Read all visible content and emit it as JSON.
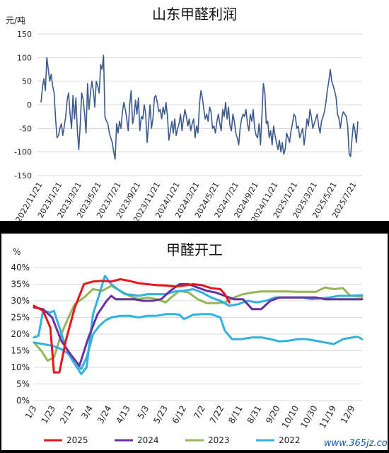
{
  "watermark": "www.365jz.com",
  "colors": {
    "profit_line": "#3a5a8c",
    "s2025": "#e8161b",
    "s2024": "#6a2fa1",
    "s2023": "#93b656",
    "s2022": "#2fb2e0",
    "grid": "#d9d9d9"
  },
  "chart_data": [
    {
      "type": "line",
      "title": "山东甲醛利润",
      "unit_label": "元/吨",
      "ylim": [
        -150,
        150
      ],
      "yticks": [
        150,
        100,
        50,
        0,
        -50,
        -100,
        -150
      ],
      "xticks": [
        "2022/11/21",
        "2023/1/21",
        "2023/3/21",
        "2023/5/21",
        "2023/7/21",
        "2023/9/21",
        "2023/11/21",
        "2024/1/21",
        "2024/3/21",
        "2024/5/21",
        "2024/7/21",
        "2024/9/21",
        "2024/11/21",
        "2025/1/21",
        "2025/3/21",
        "2025/5/21",
        "2025/7/21"
      ],
      "grid": true,
      "series": [
        {
          "x_start": "2022/11/21",
          "x_end": "2025/7/31",
          "values": [
            5,
            38,
            55,
            30,
            100,
            75,
            50,
            65,
            40,
            25,
            -30,
            -70,
            -65,
            -50,
            -40,
            -65,
            -45,
            -25,
            10,
            25,
            -20,
            -50,
            20,
            -30,
            15,
            -55,
            -95,
            -40,
            25,
            10,
            -20,
            -60,
            45,
            -10,
            25,
            50,
            30,
            -5,
            50,
            40,
            25,
            85,
            75,
            105,
            -25,
            -35,
            -40,
            -60,
            -70,
            -80,
            -100,
            -115,
            -40,
            -60,
            -35,
            -50,
            -15,
            5,
            -10,
            -30,
            -55,
            0,
            30,
            -40,
            -25,
            10,
            -20,
            15,
            -55,
            -25,
            -30,
            0,
            -20,
            -80,
            -40,
            0,
            -50,
            -30,
            15,
            20,
            5,
            -15,
            -10,
            -30,
            -5,
            -20,
            5,
            -25,
            -75,
            -55,
            -35,
            -60,
            -30,
            -65,
            -50,
            -40,
            -20,
            -55,
            -30,
            -10,
            -25,
            -45,
            -30,
            -55,
            -40,
            -30,
            -70,
            -45,
            -60,
            0,
            30,
            15,
            -10,
            -30,
            -20,
            -35,
            -5,
            -15,
            -50,
            -45,
            -60,
            -35,
            -20,
            -40,
            -55,
            -10,
            -25,
            5,
            -30,
            -5,
            -45,
            -55,
            -20,
            -35,
            -60,
            -70,
            -85,
            -50,
            -30,
            -20,
            -25,
            -10,
            -40,
            -55,
            -20,
            -35,
            -10,
            -50,
            -65,
            -70,
            -40,
            -85,
            -20,
            45,
            25,
            -40,
            -35,
            -70,
            -55,
            -85,
            -45,
            -65,
            -80,
            -95,
            -75,
            -100,
            -80,
            -105,
            -95,
            -60,
            -70,
            -80,
            -55,
            -40,
            -20,
            -25,
            -50,
            -45,
            -70,
            -60,
            -50,
            -85,
            -60,
            -30,
            -45,
            -10,
            -25,
            -50,
            -40,
            -30,
            -20,
            -45,
            -60,
            -35,
            -25,
            -15,
            5,
            30,
            50,
            75,
            50,
            40,
            30,
            15,
            -20,
            -30,
            -50,
            -25,
            -15,
            -20,
            -25,
            -45,
            -105,
            -110,
            -70,
            -40,
            -55,
            -80,
            -35
          ]
        }
      ]
    },
    {
      "type": "line",
      "title": "甲醛开工",
      "unit_label": "%",
      "ylim": [
        0,
        40
      ],
      "yticks": [
        "40%",
        "35%",
        "30%",
        "25%",
        "20%",
        "15%",
        "10%",
        "5%",
        "0%"
      ],
      "xticks": [
        "1/3",
        "1/23",
        "2/12",
        "3/4",
        "3/24",
        "4/13",
        "5/3",
        "5/23",
        "6/12",
        "7/2",
        "7/22",
        "8/11",
        "8/31",
        "9/20",
        "10/10",
        "10/30",
        "11/19",
        "12/9"
      ],
      "x_domain": [
        0,
        361
      ],
      "grid": true,
      "series": [
        {
          "name": "2025",
          "color": "#e8161b",
          "points": [
            [
              0,
              28.5
            ],
            [
              10,
              27
            ],
            [
              18,
              22
            ],
            [
              22,
              8.5
            ],
            [
              28,
              8.5
            ],
            [
              35,
              18
            ],
            [
              45,
              28
            ],
            [
              55,
              35
            ],
            [
              65,
              35.8
            ],
            [
              75,
              36
            ],
            [
              85,
              35.8
            ],
            [
              95,
              36.5
            ],
            [
              105,
              36
            ],
            [
              115,
              35.3
            ],
            [
              125,
              35
            ],
            [
              135,
              34.7
            ],
            [
              145,
              34.6
            ],
            [
              155,
              34.3
            ],
            [
              165,
              34.6
            ],
            [
              175,
              35
            ],
            [
              185,
              34.7
            ],
            [
              195,
              33.8
            ],
            [
              205,
              33.5
            ],
            [
              210,
              32
            ],
            [
              215,
              29.5
            ]
          ]
        },
        {
          "name": "2024",
          "color": "#6a2fa1",
          "points": [
            [
              0,
              28
            ],
            [
              10,
              27.5
            ],
            [
              20,
              25
            ],
            [
              30,
              18
            ],
            [
              40,
              14
            ],
            [
              50,
              10.5
            ],
            [
              60,
              19
            ],
            [
              70,
              26
            ],
            [
              80,
              30
            ],
            [
              85,
              31.5
            ],
            [
              90,
              30.5
            ],
            [
              100,
              30.5
            ],
            [
              110,
              30.5
            ],
            [
              120,
              30
            ],
            [
              130,
              30
            ],
            [
              140,
              30.5
            ],
            [
              150,
              33
            ],
            [
              160,
              35
            ],
            [
              170,
              35
            ],
            [
              180,
              34
            ],
            [
              190,
              33
            ],
            [
              200,
              32.5
            ],
            [
              210,
              31.5
            ],
            [
              220,
              30.5
            ],
            [
              230,
              30.5
            ],
            [
              240,
              27.5
            ],
            [
              250,
              27.5
            ],
            [
              260,
              30
            ],
            [
              270,
              31
            ],
            [
              290,
              31
            ],
            [
              310,
              31
            ],
            [
              320,
              30.5
            ],
            [
              335,
              30.5
            ],
            [
              350,
              30.5
            ],
            [
              361,
              30.5
            ]
          ]
        },
        {
          "name": "2023",
          "color": "#93b656",
          "points": [
            [
              0,
              17.5
            ],
            [
              8,
              15
            ],
            [
              15,
              12
            ],
            [
              22,
              13
            ],
            [
              30,
              20
            ],
            [
              38,
              25
            ],
            [
              45,
              29
            ],
            [
              55,
              31
            ],
            [
              65,
              33.5
            ],
            [
              75,
              33
            ],
            [
              85,
              34.5
            ],
            [
              95,
              33
            ],
            [
              105,
              31.5
            ],
            [
              115,
              30.5
            ],
            [
              125,
              31
            ],
            [
              135,
              30.5
            ],
            [
              145,
              29.5
            ],
            [
              150,
              30.8
            ],
            [
              160,
              33
            ],
            [
              170,
              32.5
            ],
            [
              180,
              30.5
            ],
            [
              190,
              29.3
            ],
            [
              200,
              29.3
            ],
            [
              210,
              29.5
            ],
            [
              220,
              31
            ],
            [
              230,
              32
            ],
            [
              240,
              32.5
            ],
            [
              250,
              32.8
            ],
            [
              260,
              32.8
            ],
            [
              270,
              32.8
            ],
            [
              280,
              32.8
            ],
            [
              290,
              32.7
            ],
            [
              300,
              32.7
            ],
            [
              310,
              32.7
            ],
            [
              320,
              34
            ],
            [
              330,
              33.5
            ],
            [
              340,
              33.8
            ],
            [
              348,
              31.5
            ],
            [
              361,
              31.2
            ]
          ]
        },
        {
          "name": "2022",
          "color": "#2fb2e0",
          "points": [
            [
              0,
              19
            ],
            [
              5,
              19.5
            ],
            [
              10,
              27
            ],
            [
              18,
              26.5
            ],
            [
              22,
              27
            ],
            [
              28,
              22
            ],
            [
              35,
              16
            ],
            [
              45,
              11
            ],
            [
              52,
              8
            ],
            [
              58,
              10
            ],
            [
              65,
              26
            ],
            [
              72,
              32
            ],
            [
              78,
              37.5
            ],
            [
              85,
              35
            ],
            [
              92,
              33.5
            ],
            [
              100,
              32
            ],
            [
              108,
              31.8
            ],
            [
              115,
              31.5
            ],
            [
              125,
              32
            ],
            [
              135,
              32
            ],
            [
              145,
              32
            ],
            [
              155,
              32.8
            ],
            [
              165,
              33
            ],
            [
              175,
              33.5
            ],
            [
              185,
              32.5
            ],
            [
              195,
              31
            ],
            [
              205,
              30
            ],
            [
              215,
              28.5
            ],
            [
              225,
              29
            ],
            [
              235,
              30
            ],
            [
              245,
              29.5
            ],
            [
              255,
              30
            ],
            [
              265,
              31
            ],
            [
              275,
              31
            ],
            [
              285,
              31
            ],
            [
              295,
              31
            ],
            [
              305,
              30.5
            ],
            [
              315,
              30.7
            ],
            [
              325,
              31
            ],
            [
              335,
              31.5
            ],
            [
              345,
              31.5
            ],
            [
              361,
              31.7
            ]
          ]
        },
        {
          "name": "",
          "color": "#2fb2e0",
          "points": [
            [
              0,
              17.5
            ],
            [
              10,
              17
            ],
            [
              20,
              16.5
            ],
            [
              30,
              15.5
            ],
            [
              38,
              14
            ],
            [
              45,
              11
            ],
            [
              52,
              9.5
            ],
            [
              58,
              13
            ],
            [
              65,
              20
            ],
            [
              72,
              22.5
            ],
            [
              78,
              24
            ],
            [
              85,
              25
            ],
            [
              95,
              25.5
            ],
            [
              105,
              25.5
            ],
            [
              115,
              25
            ],
            [
              125,
              25.5
            ],
            [
              135,
              25.5
            ],
            [
              145,
              26
            ],
            [
              155,
              26
            ],
            [
              160,
              25.8
            ],
            [
              165,
              24.5
            ],
            [
              175,
              25.8
            ],
            [
              185,
              26
            ],
            [
              195,
              26
            ],
            [
              205,
              25
            ],
            [
              210,
              21
            ],
            [
              218,
              18.5
            ],
            [
              228,
              18.5
            ],
            [
              240,
              19
            ],
            [
              250,
              19
            ],
            [
              260,
              18.5
            ],
            [
              270,
              17.8
            ],
            [
              280,
              18
            ],
            [
              290,
              18.5
            ],
            [
              300,
              18.5
            ],
            [
              310,
              18
            ],
            [
              320,
              17.5
            ],
            [
              330,
              17
            ],
            [
              340,
              18.5
            ],
            [
              350,
              19
            ],
            [
              356,
              19.2
            ],
            [
              361,
              18.5
            ]
          ]
        }
      ]
    }
  ]
}
